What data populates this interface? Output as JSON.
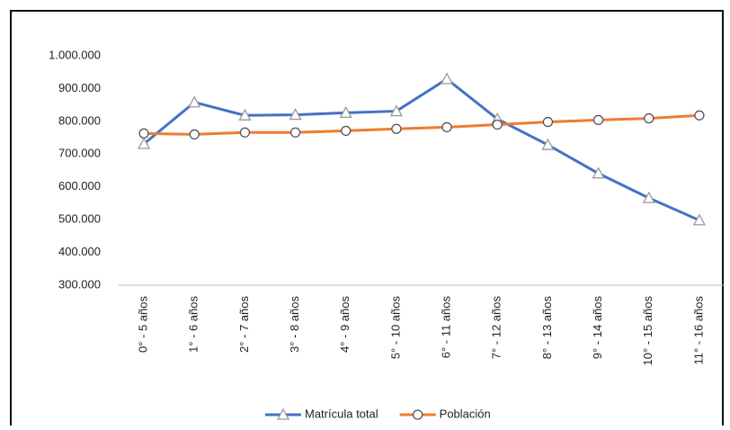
{
  "chart_data": {
    "type": "line",
    "categories": [
      "0° - 5 años",
      "1° - 6 años",
      "2° - 7 años",
      "3° - 8 años",
      "4° - 9 años",
      "5° - 10 años",
      "6° - 11 años",
      "7° - 12 años",
      "8° - 13 años",
      "9° - 14 años",
      "10° - 15 años",
      "11° - 16 años"
    ],
    "series": [
      {
        "name": "Matrícula total",
        "color": "#4472c4",
        "marker": "triangle",
        "values": [
          731000,
          858000,
          818000,
          820000,
          826000,
          831000,
          929000,
          807000,
          728000,
          641000,
          566000,
          498000
        ]
      },
      {
        "name": "Población",
        "color": "#ed7d31",
        "marker": "circle",
        "values": [
          763000,
          760000,
          766000,
          766000,
          771000,
          777000,
          782000,
          790000,
          798000,
          804000,
          809000,
          818000
        ]
      }
    ],
    "ylim": [
      300000,
      1000000
    ],
    "yticks": [
      {
        "value": 300000,
        "label": "300.000"
      },
      {
        "value": 400000,
        "label": "400.000"
      },
      {
        "value": 500000,
        "label": "500.000"
      },
      {
        "value": 600000,
        "label": "600.000"
      },
      {
        "value": 700000,
        "label": "700.000"
      },
      {
        "value": 800000,
        "label": "800.000"
      },
      {
        "value": 900000,
        "label": "900.000"
      },
      {
        "value": 1000000,
        "label": "1.000.000"
      }
    ],
    "grid": false,
    "legend": "bottom"
  }
}
